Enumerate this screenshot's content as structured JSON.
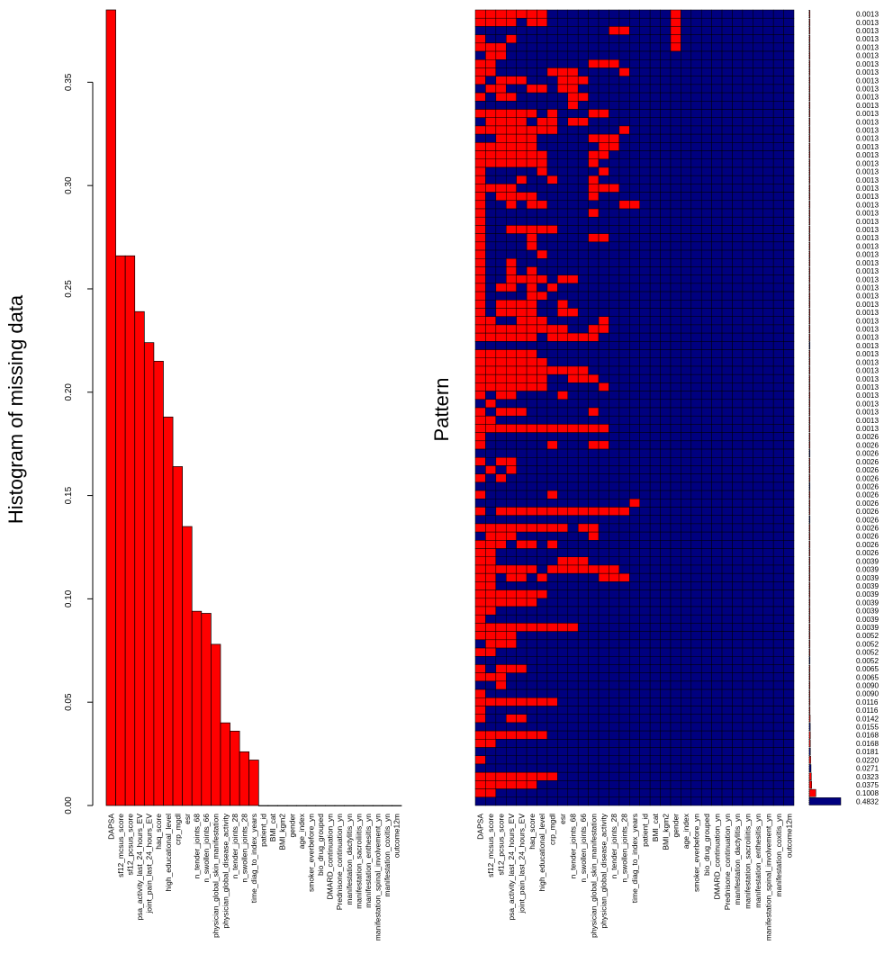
{
  "chart_data": [
    {
      "type": "bar",
      "ylabel": "Histogram of missing data",
      "ylim": [
        0,
        0.385
      ],
      "yticks": [
        "0.00",
        "0.05",
        "0.10",
        "0.15",
        "0.20",
        "0.25",
        "0.30",
        "0.35"
      ],
      "categories": [
        "DAPSA",
        "sf12_mcsus_score",
        "sf12_pcsus_score",
        "psa_activity_last_24_hours_EV",
        "joint_pain_last_24_hours_EV",
        "haq_score",
        "high_educational_level",
        "crp_mgdl",
        "esr",
        "n_tender_joints_68",
        "n_swollen_joints_66",
        "physician_global_skin_manifestation",
        "physician_global_disease_activity",
        "n_tender_joints_28",
        "n_swollen_joints_28",
        "time_diag_to_index_years",
        "patient_id",
        "BMI_cat",
        "BMI_kgm2",
        "gender",
        "age_index",
        "smoker_everbefore_yn",
        "bio_drug_grouped",
        "DMARD_continuation_yn",
        "Prednisone_continuation_yn",
        "manifestation_dactylitis_yn",
        "manifestation_sacroiliitis_yn",
        "manifestation_enthesitis_yn",
        "manifestation_spinal_involvement_yn",
        "manifestation_coxitis_yn",
        "outcome12m"
      ],
      "values": [
        0.385,
        0.266,
        0.266,
        0.239,
        0.224,
        0.215,
        0.188,
        0.164,
        0.135,
        0.094,
        0.093,
        0.078,
        0.04,
        0.036,
        0.026,
        0.022,
        0,
        0,
        0,
        0,
        0,
        0,
        0,
        0,
        0,
        0,
        0,
        0,
        0,
        0,
        0
      ],
      "color": "#ff0000"
    },
    {
      "type": "heatmap",
      "ylabel": "Pattern",
      "columns": [
        "DAPSA",
        "sf12_mcsus_score",
        "sf12_pcsus_score",
        "psa_activity_last_24_hours_EV",
        "joint_pain_last_24_hours_EV",
        "haq_score",
        "high_educational_level",
        "crp_mgdl",
        "esr",
        "n_tender_joints_68",
        "n_swollen_joints_66",
        "physician_global_skin_manifestation",
        "physician_global_disease_activity",
        "n_tender_joints_28",
        "n_swollen_joints_28",
        "time_diag_to_index_years",
        "patient_id",
        "BMI_cat",
        "BMI_kgm2",
        "gender",
        "age_index",
        "smoker_everbefore_yn",
        "bio_drug_grouped",
        "DMARD_continuation_yn",
        "Prednisone_continuation_yn",
        "manifestation_dactylitis_yn",
        "manifestation_sacroiliitis_yn",
        "manifestation_enthesitis_yn",
        "manifestation_spinal_involvement_yn",
        "manifestation_coxitis_yn",
        "outcome12m"
      ],
      "missing_color": "#ff0000",
      "present_color": "#00007f",
      "row_proportions": [
        "0.0013",
        "0.0013",
        "0.0013",
        "0.0013",
        "0.0013",
        "0.0013",
        "0.0013",
        "0.0013",
        "0.0013",
        "0.0013",
        "0.0013",
        "0.0013",
        "0.0013",
        "0.0013",
        "0.0013",
        "0.0013",
        "0.0013",
        "0.0013",
        "0.0013",
        "0.0013",
        "0.0013",
        "0.0013",
        "0.0013",
        "0.0013",
        "0.0013",
        "0.0013",
        "0.0013",
        "0.0013",
        "0.0013",
        "0.0013",
        "0.0013",
        "0.0013",
        "0.0013",
        "0.0013",
        "0.0013",
        "0.0013",
        "0.0013",
        "0.0013",
        "0.0013",
        "0.0013",
        "0.0013",
        "0.0013",
        "0.0013",
        "0.0013",
        "0.0013",
        "0.0013",
        "0.0013",
        "0.0013",
        "0.0013",
        "0.0013",
        "0.0013",
        "0.0026",
        "0.0026",
        "0.0026",
        "0.0026",
        "0.0026",
        "0.0026",
        "0.0026",
        "0.0026",
        "0.0026",
        "0.0026",
        "0.0026",
        "0.0026",
        "0.0026",
        "0.0026",
        "0.0026",
        "0.0039",
        "0.0039",
        "0.0039",
        "0.0039",
        "0.0039",
        "0.0039",
        "0.0039",
        "0.0039",
        "0.0039",
        "0.0052",
        "0.0052",
        "0.0052",
        "0.0052",
        "0.0065",
        "0.0065",
        "0.0090",
        "0.0090",
        "0.0116",
        "0.0116",
        "0.0142",
        "0.0155",
        "0.0168",
        "0.0168",
        "0.0181",
        "0.0220",
        "0.0271",
        "0.0323",
        "0.0375",
        "0.1008",
        "0.4832"
      ],
      "rows": [
        "1111111000000000000100000000000",
        "1111011000000000000100000000000",
        "0000000000000110000100000000000",
        "1001000000000000000100000000000",
        "1110000000000000000100000000000",
        "0110000000000000000000000000000",
        "1100000000011100000000000000000",
        "1100000111000010000000000000000",
        "1011100011100000000000000000000",
        "0110011011000000000000000000000",
        "1011000001100000000000000000000",
        "0000000001000000000000000000000",
        "1111110100011000000000000000000",
        "0111101101100000000000000000000",
        "1111111100000010000000000000000",
        "0011110000011100000000000000000",
        "1111110000001100000000000000000",
        "1111111000011000000000000000000",
        "1111111000010000000000000000000",
        "1000001000001000000000000000000",
        "1000100100010000000000000000000",
        "1111000000011100000000000000000",
        "1011110000010000000000000000000",
        "1001011000000011000000000000000",
        "1000000000010000000000000000000",
        "1000000000000000000000000000000",
        "1001111100000000000000000000000",
        "1000010000011000000000000000000",
        "1000010000000000000000000000000",
        "1000001000000000000000000000000",
        "1001000000000000000000000000000",
        "1001010000000000000000000000000",
        "1001111011000000000000000000000",
        "1011010100000000000000000000000",
        "1000011000000000000000000000000",
        "1011110010000000000000000000000",
        "1011110011000000000000000000000",
        "1100111000001000000000000000000",
        "1111111110011000000000000000000",
        "1111110111110000000000000000000",
        "0000000000000000000000000000000",
        "1111110000000000000000000000000",
        "1111111000000000000000000000000",
        "1111111111100000000000000000000",
        "1111111001110000000000000000000",
        "1111111000001000000000000000000",
        "1011000010000000000000000000000",
        "0100000000000000000000000000000",
        "1011100000010000000000000000000",
        "1100000000000000000000000000000",
        "1111111111111000000000000000000",
        "1000000000000000000000000000000",
        "1000000100011000000000000000000",
        "0000000000000000000000000000000",
        "1011000000000000000000000000000",
        "0101000000000000000000000000000",
        "1010000000000000000000000000000",
        "0000000000000000000000000000000",
        "1000000100000000000000000000000",
        "0000000000000001000000000000000",
        "1011111111111110000000000000000",
        "0000000000000000000000000000000",
        "1111111110110000000000000000000",
        "0111000000010000000000000000000",
        "1110110100000000000000000000000",
        "1100000000000000000000000000000",
        "1100000011100000000000000000000",
        "1111110111111100000000000000000",
        "1101101000001110000000000000000",
        "1100000000000000000000000000000",
        "1111111000000000000000000000000",
        "1111110000000000000000000000000",
        "1100000000000000000000000000000",
        "1000000000000000000000000000000",
        "1111111111000000000000000000000",
        "1111000000000000000000000000000",
        "0111000000000000000000000000000",
        "1100000000000000000000000000000",
        "0000000000000000000000000000000",
        "1011100000000000000000000000000",
        "1110000000000000000000000000000",
        "0010000000000000000000000000000",
        "1000000000000000000000000000000",
        "1111111100000000000000000000000",
        "1000000000000000000000000000000",
        "1001100000000000000000000000000",
        "0000000000000000000000000000000",
        "1111111000000000000000000000000",
        "1100000000000000000000000000000",
        "0000000000000000000000000000000",
        "1000000000000000000000000000000",
        "0000000000000000000000000000000",
        "1111111100000000000000000000000",
        "1111110000000000000000000000000",
        "1100000000000000000000000000000",
        "0000000000000000000000000000000"
      ],
      "proportion_bar_color": "#00007f",
      "proportion_bar_missing_color": "#ff0000"
    }
  ]
}
